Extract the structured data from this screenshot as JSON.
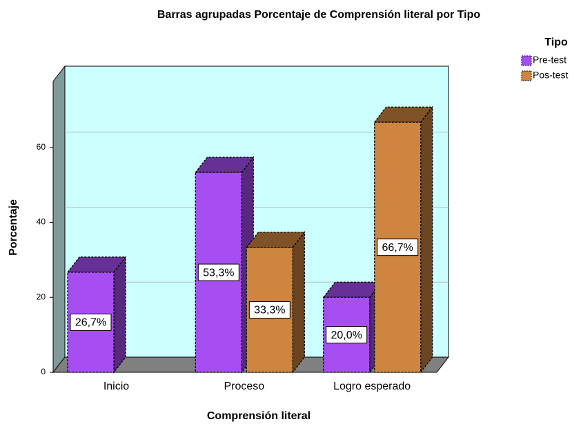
{
  "chart_data": {
    "type": "bar",
    "title": "Barras agrupadas Porcentaje de Comprensión literal  por Tipo",
    "x_label": "Comprensión literal",
    "y_label": "Porcentaje",
    "legend_title": "Tipo",
    "categories": [
      "Inicio",
      "Proceso",
      "Logro esperado"
    ],
    "series": [
      {
        "name": "Pre-test",
        "color": "#a64ef2",
        "values": [
          26.7,
          53.3,
          20.0
        ],
        "value_labels": [
          "26,7%",
          "53,3%",
          "20,0%"
        ]
      },
      {
        "name": "Pos-test",
        "color": "#cd8540",
        "values": [
          null,
          33.3,
          66.7
        ],
        "value_labels": [
          null,
          "33,3%",
          "66,7%"
        ]
      }
    ],
    "ylim": [
      0,
      77.6
    ],
    "yticks": [
      0,
      20,
      40,
      60
    ],
    "grid": true,
    "legend": "top-right"
  }
}
